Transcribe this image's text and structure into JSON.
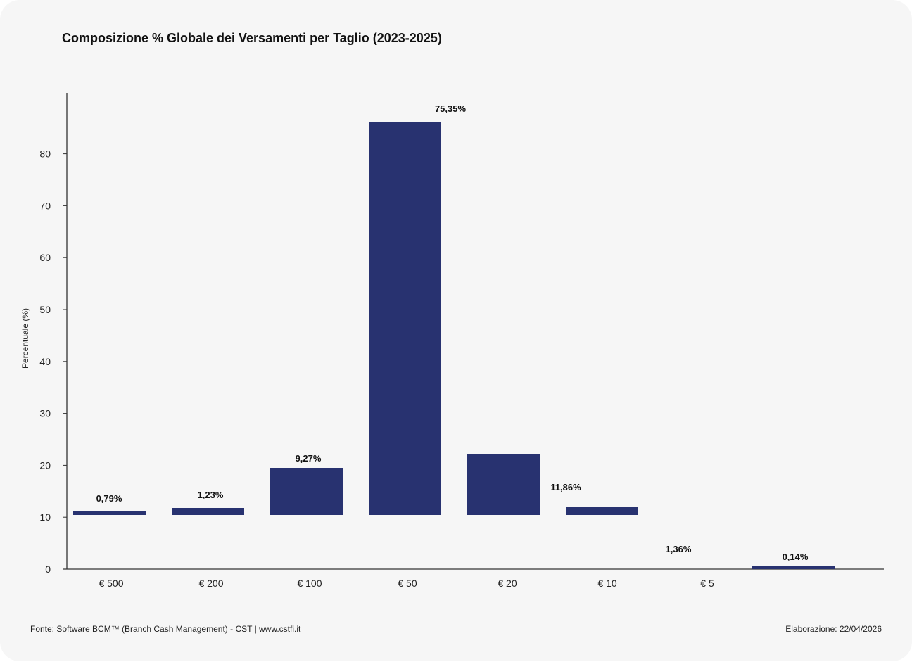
{
  "chart_data": {
    "type": "bar",
    "title": "Composizione % Globale dei Versamenti per Taglio (2023-2025)",
    "ylabel": "Percentuale (%)",
    "xlabel": "",
    "yticks": [
      0,
      10,
      20,
      30,
      40,
      50,
      60,
      70,
      80
    ],
    "categories": [
      "€ 500",
      "€ 200",
      "€ 100",
      "€ 50",
      "€ 20",
      "€ 10",
      "€ 5"
    ],
    "bars": [
      {
        "value": 0.79
      },
      {
        "value": 1.23
      },
      {
        "value": 9.27
      },
      {
        "value": 75.35
      },
      {
        "value": 11.86
      },
      {
        "value": 1.36
      },
      {
        "value": 0.14
      }
    ],
    "data_labels": [
      "0,79%",
      "1,23%",
      "9,27%",
      "75,35%",
      "11,86%",
      "1,36%",
      "0,14%"
    ],
    "bar_color": "#283270",
    "grid": false,
    "legend": "none"
  },
  "footer": {
    "source": "Fonte: Software BCM™ (Branch Cash Management) - CST | www.cstfi.it",
    "elaboration": "Elaborazione: 22/04/2026"
  }
}
